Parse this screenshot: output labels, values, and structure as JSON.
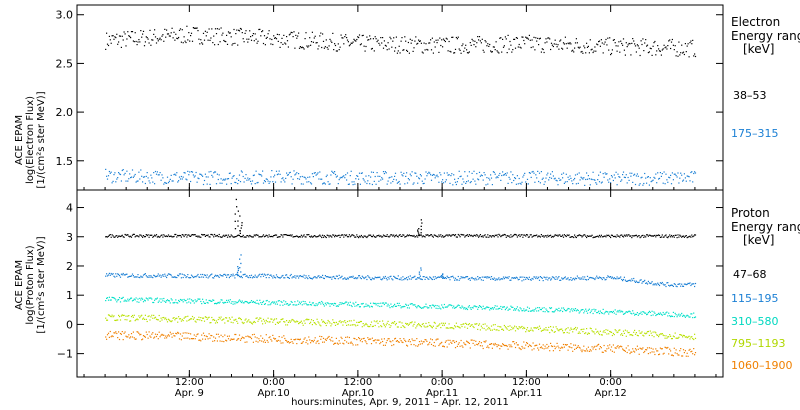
{
  "chart_data": [
    {
      "type": "scatter",
      "title": "",
      "ylabel_lines": [
        "ACE EPAM",
        "log(Electron Flux)",
        "[1/(cm²s ster MeV)]"
      ],
      "ylim": [
        1.2,
        3.1
      ],
      "yticks": [
        "1.5",
        "2.0",
        "2.5",
        "3.0"
      ],
      "ytick_values": [
        1.5,
        2.0,
        2.5,
        3.0
      ],
      "legend": {
        "head": [
          "Electron",
          "Energy ranges",
          "[keV]"
        ],
        "entries": [
          "38–53",
          "175–315"
        ]
      },
      "series": [
        {
          "name": "38–53",
          "color": "#000000",
          "x": [
            0,
            12,
            24,
            36,
            48,
            60,
            72,
            84
          ],
          "y": [
            2.74,
            2.8,
            2.76,
            2.71,
            2.69,
            2.71,
            2.68,
            2.66
          ],
          "spread": 0.09
        },
        {
          "name": "175–315",
          "color": "#1a7fd4",
          "x": [
            0,
            12,
            24,
            36,
            48,
            60,
            72,
            84
          ],
          "y": [
            1.35,
            1.33,
            1.34,
            1.33,
            1.33,
            1.33,
            1.32,
            1.33
          ],
          "spread": 0.07
        }
      ]
    },
    {
      "type": "scatter",
      "title": "",
      "ylabel_lines": [
        "ACE EPAM",
        "log(Proton Flux)",
        "[1/(cm²s ster MeV)]"
      ],
      "ylim": [
        -1.8,
        4.6
      ],
      "yticks": [
        "−1",
        "0",
        "1",
        "2",
        "3",
        "4"
      ],
      "ytick_values": [
        -1,
        0,
        1,
        2,
        3,
        4
      ],
      "legend": {
        "head": [
          "Proton",
          "Energy ranges",
          "[keV]"
        ],
        "entries": [
          "47–68",
          "115–195",
          "310–580",
          "795–1193",
          "1060–1900"
        ]
      },
      "series": [
        {
          "name": "47–68",
          "color": "#000000",
          "x": [
            0,
            12,
            24,
            36,
            48,
            60,
            72,
            84
          ],
          "y": [
            3.05,
            3.05,
            3.05,
            3.04,
            3.05,
            3.05,
            3.04,
            3.04
          ],
          "spread": 0.05,
          "spikes": [
            [
              18.5,
              4.3
            ],
            [
              19.0,
              3.9
            ],
            [
              19.3,
              3.5
            ],
            [
              44.5,
              3.3
            ],
            [
              45.0,
              3.6
            ]
          ]
        },
        {
          "name": "115–195",
          "color": "#1a7fd4",
          "x": [
            0,
            12,
            24,
            36,
            48,
            60,
            72,
            80,
            84
          ],
          "y": [
            1.7,
            1.68,
            1.67,
            1.62,
            1.6,
            1.58,
            1.62,
            1.38,
            1.38
          ],
          "spread": 0.07,
          "spikes": [
            [
              18.8,
              2.0
            ],
            [
              19.2,
              2.4
            ],
            [
              44.8,
              1.95
            ],
            [
              48.0,
              1.75
            ]
          ]
        },
        {
          "name": "310–580",
          "color": "#00e0c8",
          "x": [
            0,
            12,
            24,
            36,
            48,
            60,
            72,
            84
          ],
          "y": [
            0.88,
            0.82,
            0.76,
            0.7,
            0.63,
            0.55,
            0.45,
            0.33
          ],
          "spread": 0.08
        },
        {
          "name": "795–1193",
          "color": "#b8e000",
          "x": [
            0,
            12,
            24,
            36,
            48,
            60,
            72,
            84
          ],
          "y": [
            0.25,
            0.2,
            0.12,
            0.05,
            -0.02,
            -0.12,
            -0.25,
            -0.4
          ],
          "spread": 0.11
        },
        {
          "name": "1060–1900",
          "color": "#f08000",
          "x": [
            0,
            12,
            24,
            36,
            48,
            60,
            72,
            84
          ],
          "y": [
            -0.35,
            -0.4,
            -0.48,
            -0.55,
            -0.62,
            -0.72,
            -0.82,
            -0.95
          ],
          "spread": 0.14
        }
      ]
    }
  ],
  "x_axis": {
    "xlim": [
      -4,
      88
    ],
    "ticks": [
      {
        "x": 12,
        "time": "12:00",
        "date": "Apr. 9"
      },
      {
        "x": 24,
        "time": "0:00",
        "date": "Apr.10"
      },
      {
        "x": 36,
        "time": "12:00",
        "date": "Apr.10"
      },
      {
        "x": 48,
        "time": "0:00",
        "date": "Apr.11"
      },
      {
        "x": 60,
        "time": "12:00",
        "date": "Apr.11"
      },
      {
        "x": 72,
        "time": "0:00",
        "date": "Apr.12"
      }
    ],
    "label": "hours:minutes, Apr.  9, 2011 – Apr. 12, 2011"
  }
}
